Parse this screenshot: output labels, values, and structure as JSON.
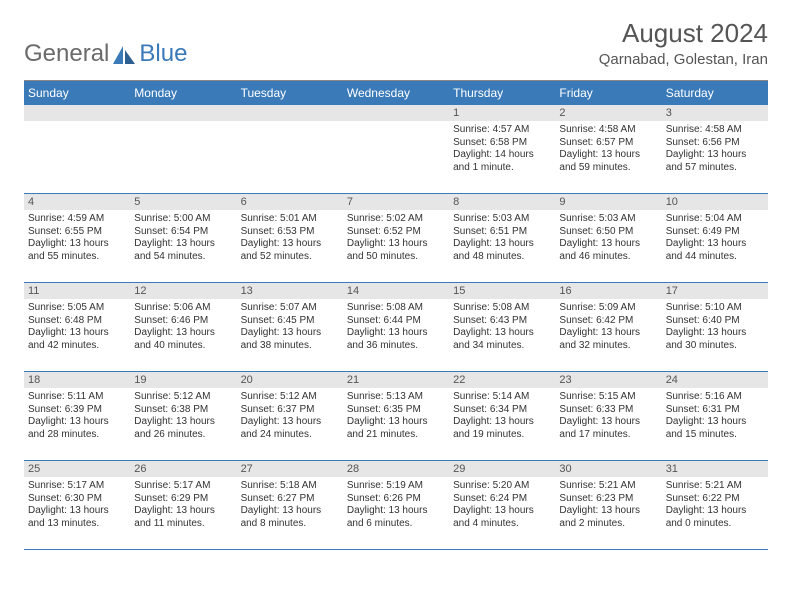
{
  "logo": {
    "text_general": "General",
    "text_blue": "Blue"
  },
  "title": "August 2024",
  "location": "Qarnabad, Golestan, Iran",
  "colors": {
    "header_bg": "#3a7ab8",
    "header_text": "#ffffff",
    "daynum_bg": "#e6e6e6",
    "row_border": "#3a7ab8",
    "body_text": "#333333",
    "title_text": "#555555"
  },
  "day_names": [
    "Sunday",
    "Monday",
    "Tuesday",
    "Wednesday",
    "Thursday",
    "Friday",
    "Saturday"
  ],
  "weeks": [
    [
      {
        "n": "",
        "sr": "",
        "ss": "",
        "dl": ""
      },
      {
        "n": "",
        "sr": "",
        "ss": "",
        "dl": ""
      },
      {
        "n": "",
        "sr": "",
        "ss": "",
        "dl": ""
      },
      {
        "n": "",
        "sr": "",
        "ss": "",
        "dl": ""
      },
      {
        "n": "1",
        "sr": "Sunrise: 4:57 AM",
        "ss": "Sunset: 6:58 PM",
        "dl": "Daylight: 14 hours and 1 minute."
      },
      {
        "n": "2",
        "sr": "Sunrise: 4:58 AM",
        "ss": "Sunset: 6:57 PM",
        "dl": "Daylight: 13 hours and 59 minutes."
      },
      {
        "n": "3",
        "sr": "Sunrise: 4:58 AM",
        "ss": "Sunset: 6:56 PM",
        "dl": "Daylight: 13 hours and 57 minutes."
      }
    ],
    [
      {
        "n": "4",
        "sr": "Sunrise: 4:59 AM",
        "ss": "Sunset: 6:55 PM",
        "dl": "Daylight: 13 hours and 55 minutes."
      },
      {
        "n": "5",
        "sr": "Sunrise: 5:00 AM",
        "ss": "Sunset: 6:54 PM",
        "dl": "Daylight: 13 hours and 54 minutes."
      },
      {
        "n": "6",
        "sr": "Sunrise: 5:01 AM",
        "ss": "Sunset: 6:53 PM",
        "dl": "Daylight: 13 hours and 52 minutes."
      },
      {
        "n": "7",
        "sr": "Sunrise: 5:02 AM",
        "ss": "Sunset: 6:52 PM",
        "dl": "Daylight: 13 hours and 50 minutes."
      },
      {
        "n": "8",
        "sr": "Sunrise: 5:03 AM",
        "ss": "Sunset: 6:51 PM",
        "dl": "Daylight: 13 hours and 48 minutes."
      },
      {
        "n": "9",
        "sr": "Sunrise: 5:03 AM",
        "ss": "Sunset: 6:50 PM",
        "dl": "Daylight: 13 hours and 46 minutes."
      },
      {
        "n": "10",
        "sr": "Sunrise: 5:04 AM",
        "ss": "Sunset: 6:49 PM",
        "dl": "Daylight: 13 hours and 44 minutes."
      }
    ],
    [
      {
        "n": "11",
        "sr": "Sunrise: 5:05 AM",
        "ss": "Sunset: 6:48 PM",
        "dl": "Daylight: 13 hours and 42 minutes."
      },
      {
        "n": "12",
        "sr": "Sunrise: 5:06 AM",
        "ss": "Sunset: 6:46 PM",
        "dl": "Daylight: 13 hours and 40 minutes."
      },
      {
        "n": "13",
        "sr": "Sunrise: 5:07 AM",
        "ss": "Sunset: 6:45 PM",
        "dl": "Daylight: 13 hours and 38 minutes."
      },
      {
        "n": "14",
        "sr": "Sunrise: 5:08 AM",
        "ss": "Sunset: 6:44 PM",
        "dl": "Daylight: 13 hours and 36 minutes."
      },
      {
        "n": "15",
        "sr": "Sunrise: 5:08 AM",
        "ss": "Sunset: 6:43 PM",
        "dl": "Daylight: 13 hours and 34 minutes."
      },
      {
        "n": "16",
        "sr": "Sunrise: 5:09 AM",
        "ss": "Sunset: 6:42 PM",
        "dl": "Daylight: 13 hours and 32 minutes."
      },
      {
        "n": "17",
        "sr": "Sunrise: 5:10 AM",
        "ss": "Sunset: 6:40 PM",
        "dl": "Daylight: 13 hours and 30 minutes."
      }
    ],
    [
      {
        "n": "18",
        "sr": "Sunrise: 5:11 AM",
        "ss": "Sunset: 6:39 PM",
        "dl": "Daylight: 13 hours and 28 minutes."
      },
      {
        "n": "19",
        "sr": "Sunrise: 5:12 AM",
        "ss": "Sunset: 6:38 PM",
        "dl": "Daylight: 13 hours and 26 minutes."
      },
      {
        "n": "20",
        "sr": "Sunrise: 5:12 AM",
        "ss": "Sunset: 6:37 PM",
        "dl": "Daylight: 13 hours and 24 minutes."
      },
      {
        "n": "21",
        "sr": "Sunrise: 5:13 AM",
        "ss": "Sunset: 6:35 PM",
        "dl": "Daylight: 13 hours and 21 minutes."
      },
      {
        "n": "22",
        "sr": "Sunrise: 5:14 AM",
        "ss": "Sunset: 6:34 PM",
        "dl": "Daylight: 13 hours and 19 minutes."
      },
      {
        "n": "23",
        "sr": "Sunrise: 5:15 AM",
        "ss": "Sunset: 6:33 PM",
        "dl": "Daylight: 13 hours and 17 minutes."
      },
      {
        "n": "24",
        "sr": "Sunrise: 5:16 AM",
        "ss": "Sunset: 6:31 PM",
        "dl": "Daylight: 13 hours and 15 minutes."
      }
    ],
    [
      {
        "n": "25",
        "sr": "Sunrise: 5:17 AM",
        "ss": "Sunset: 6:30 PM",
        "dl": "Daylight: 13 hours and 13 minutes."
      },
      {
        "n": "26",
        "sr": "Sunrise: 5:17 AM",
        "ss": "Sunset: 6:29 PM",
        "dl": "Daylight: 13 hours and 11 minutes."
      },
      {
        "n": "27",
        "sr": "Sunrise: 5:18 AM",
        "ss": "Sunset: 6:27 PM",
        "dl": "Daylight: 13 hours and 8 minutes."
      },
      {
        "n": "28",
        "sr": "Sunrise: 5:19 AM",
        "ss": "Sunset: 6:26 PM",
        "dl": "Daylight: 13 hours and 6 minutes."
      },
      {
        "n": "29",
        "sr": "Sunrise: 5:20 AM",
        "ss": "Sunset: 6:24 PM",
        "dl": "Daylight: 13 hours and 4 minutes."
      },
      {
        "n": "30",
        "sr": "Sunrise: 5:21 AM",
        "ss": "Sunset: 6:23 PM",
        "dl": "Daylight: 13 hours and 2 minutes."
      },
      {
        "n": "31",
        "sr": "Sunrise: 5:21 AM",
        "ss": "Sunset: 6:22 PM",
        "dl": "Daylight: 13 hours and 0 minutes."
      }
    ]
  ]
}
